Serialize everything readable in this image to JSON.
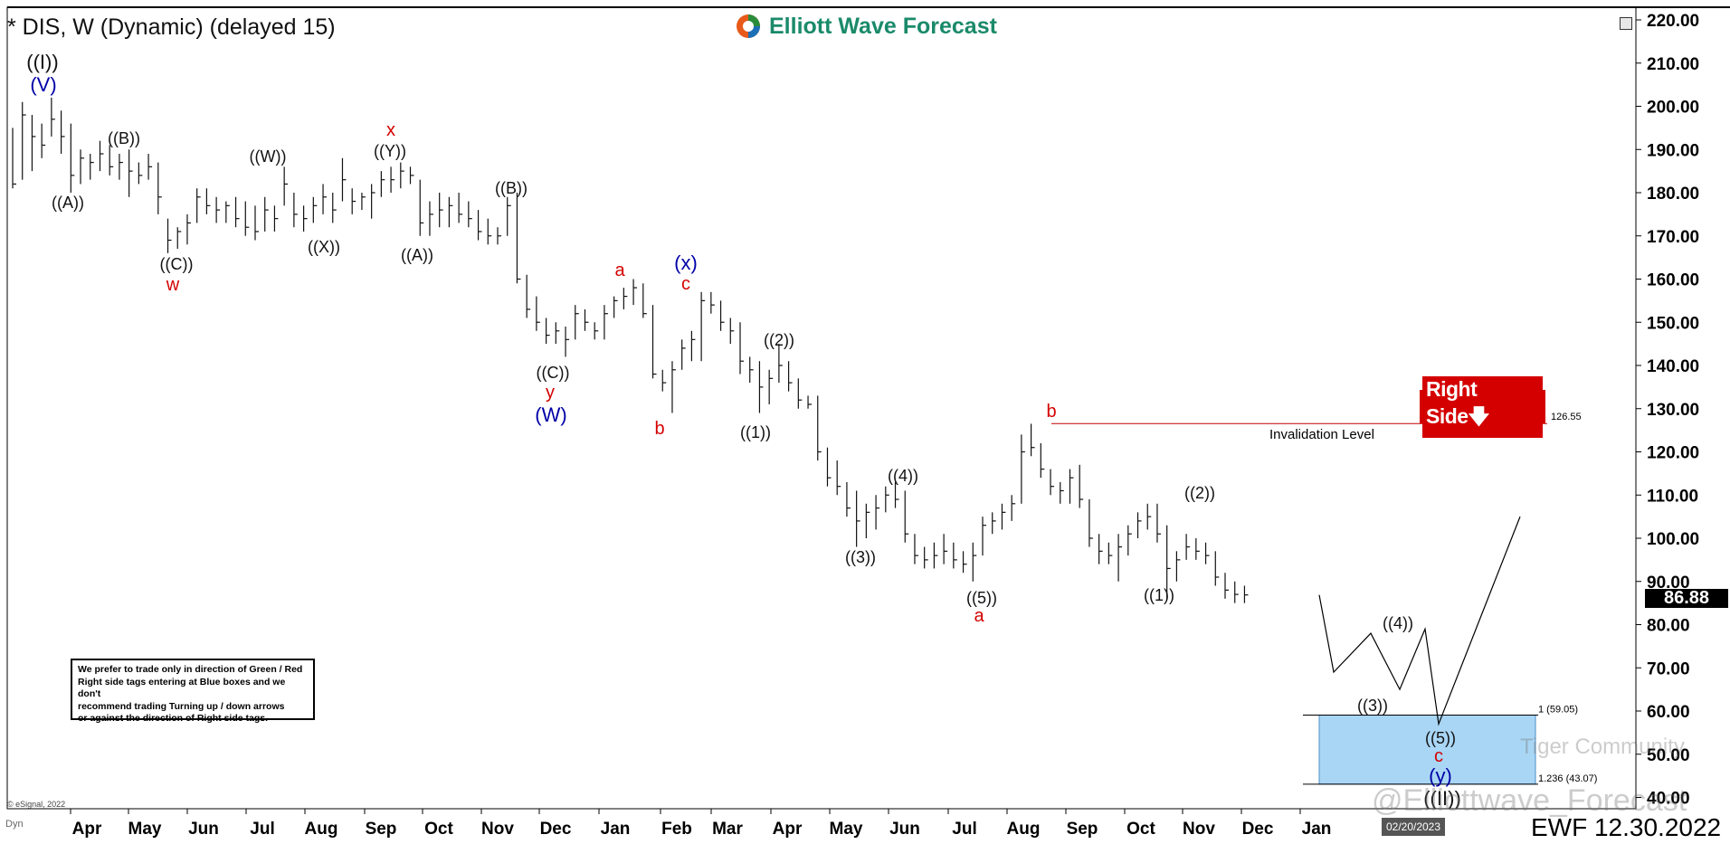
{
  "header": {
    "title": "* DIS, W (Dynamic) (delayed 15)",
    "logo_text": "Elliott Wave Forecast"
  },
  "note": {
    "lines": [
      "We prefer to trade only in direction of Green / Red",
      "Right side tags entering at Blue boxes and we don't",
      "recommend trading Turning up / down arrows",
      "or against the direction of Right side tags."
    ]
  },
  "badges": {
    "right_side": "Right Side",
    "last_price": "86.88",
    "cursor_date": "02/20/2023"
  },
  "footer": {
    "ewf_date": "EWF 12.30.2022",
    "esignal": "© eSignal, 2022",
    "dyn": "Dyn"
  },
  "watermarks": {
    "community": "Tiger Community",
    "handle": "@Elliottwave_Forecast"
  },
  "colors": {
    "label_black": "#111111",
    "label_red": "#d40000",
    "label_blue": "#0000a8",
    "invalidation_line": "#c00000",
    "blue_box": "#a9d6f5",
    "bars": "#111111"
  },
  "chart_data": {
    "type": "ohlc",
    "timeframe": "weekly",
    "yaxis": {
      "ticks": [
        "220.00",
        "210.00",
        "200.00",
        "190.00",
        "180.00",
        "170.00",
        "160.00",
        "150.00",
        "140.00",
        "130.00",
        "120.00",
        "110.00",
        "100.00",
        "90.00",
        "80.00",
        "70.00",
        "60.00",
        "50.00",
        "40.00"
      ],
      "ylim": [
        40,
        220
      ],
      "position": "right"
    },
    "xaxis": {
      "ticks": [
        "Apr",
        "May",
        "Jun",
        "Jul",
        "Aug",
        "Sep",
        "Oct",
        "Nov",
        "Dec",
        "Jan",
        "Feb",
        "Mar",
        "Apr",
        "May",
        "Jun",
        "Jul",
        "Aug",
        "Sep",
        "Oct",
        "Nov",
        "Dec",
        "Jan"
      ]
    },
    "bars": [
      {
        "h": 195.0,
        "l": 181.0,
        "c": 182.0
      },
      {
        "h": 201.0,
        "l": 183.0,
        "c": 198.0
      },
      {
        "h": 198.0,
        "l": 185.0,
        "c": 193.0
      },
      {
        "h": 196.0,
        "l": 188.0,
        "c": 191.0
      },
      {
        "h": 202.0,
        "l": 193.0,
        "c": 197.0
      },
      {
        "h": 199.0,
        "l": 189.0,
        "c": 193.0
      },
      {
        "h": 196.0,
        "l": 180.0,
        "c": 184.0
      },
      {
        "h": 190.0,
        "l": 182.0,
        "c": 188.0
      },
      {
        "h": 189.0,
        "l": 183.0,
        "c": 187.0
      },
      {
        "h": 192.0,
        "l": 185.0,
        "c": 189.0
      },
      {
        "h": 191.0,
        "l": 184.0,
        "c": 186.0
      },
      {
        "h": 189.0,
        "l": 183.0,
        "c": 187.0
      },
      {
        "h": 190.0,
        "l": 179.0,
        "c": 185.0
      },
      {
        "h": 187.0,
        "l": 182.0,
        "c": 184.0
      },
      {
        "h": 189.0,
        "l": 183.0,
        "c": 186.0
      },
      {
        "h": 187.0,
        "l": 175.0,
        "c": 179.0
      },
      {
        "h": 174.0,
        "l": 166.0,
        "c": 169.0
      },
      {
        "h": 172.0,
        "l": 167.0,
        "c": 171.0
      },
      {
        "h": 175.0,
        "l": 168.0,
        "c": 173.0
      },
      {
        "h": 181.0,
        "l": 173.0,
        "c": 179.0
      },
      {
        "h": 181.0,
        "l": 175.0,
        "c": 177.0
      },
      {
        "h": 179.0,
        "l": 173.0,
        "c": 176.0
      },
      {
        "h": 178.0,
        "l": 173.0,
        "c": 177.0
      },
      {
        "h": 179.0,
        "l": 172.0,
        "c": 174.0
      },
      {
        "h": 178.0,
        "l": 170.0,
        "c": 172.0
      },
      {
        "h": 177.0,
        "l": 169.0,
        "c": 171.0
      },
      {
        "h": 179.0,
        "l": 171.0,
        "c": 176.0
      },
      {
        "h": 177.0,
        "l": 171.0,
        "c": 174.0
      },
      {
        "h": 186.0,
        "l": 177.0,
        "c": 182.0
      },
      {
        "h": 180.0,
        "l": 172.0,
        "c": 175.0
      },
      {
        "h": 177.0,
        "l": 171.0,
        "c": 174.0
      },
      {
        "h": 179.0,
        "l": 173.0,
        "c": 177.0
      },
      {
        "h": 182.0,
        "l": 175.0,
        "c": 179.0
      },
      {
        "h": 180.0,
        "l": 173.0,
        "c": 176.0
      },
      {
        "h": 188.0,
        "l": 178.0,
        "c": 183.0
      },
      {
        "h": 181.0,
        "l": 175.0,
        "c": 178.0
      },
      {
        "h": 180.0,
        "l": 176.0,
        "c": 179.0
      },
      {
        "h": 182.0,
        "l": 174.0,
        "c": 180.0
      },
      {
        "h": 185.0,
        "l": 179.0,
        "c": 183.0
      },
      {
        "h": 186.0,
        "l": 180.0,
        "c": 183.0
      },
      {
        "h": 187.0,
        "l": 181.0,
        "c": 185.0
      },
      {
        "h": 186.0,
        "l": 182.0,
        "c": 184.0
      },
      {
        "h": 183.0,
        "l": 170.0,
        "c": 173.0
      },
      {
        "h": 178.0,
        "l": 170.0,
        "c": 175.0
      },
      {
        "h": 180.0,
        "l": 172.0,
        "c": 176.0
      },
      {
        "h": 179.0,
        "l": 172.0,
        "c": 177.0
      },
      {
        "h": 180.0,
        "l": 173.0,
        "c": 175.0
      },
      {
        "h": 178.0,
        "l": 172.0,
        "c": 174.0
      },
      {
        "h": 176.0,
        "l": 169.0,
        "c": 171.0
      },
      {
        "h": 174.0,
        "l": 168.0,
        "c": 170.0
      },
      {
        "h": 172.0,
        "l": 168.0,
        "c": 170.0
      },
      {
        "h": 179.0,
        "l": 170.0,
        "c": 177.0
      },
      {
        "h": 180.0,
        "l": 159.0,
        "c": 160.0
      },
      {
        "h": 161.0,
        "l": 151.0,
        "c": 153.0
      },
      {
        "h": 156.0,
        "l": 148.0,
        "c": 150.0
      },
      {
        "h": 151.0,
        "l": 145.0,
        "c": 147.0
      },
      {
        "h": 150.0,
        "l": 145.0,
        "c": 148.0
      },
      {
        "h": 149.0,
        "l": 142.0,
        "c": 146.0
      },
      {
        "h": 154.0,
        "l": 146.0,
        "c": 152.0
      },
      {
        "h": 153.0,
        "l": 148.0,
        "c": 150.0
      },
      {
        "h": 150.0,
        "l": 146.0,
        "c": 148.0
      },
      {
        "h": 154.0,
        "l": 146.0,
        "c": 152.0
      },
      {
        "h": 156.0,
        "l": 151.0,
        "c": 155.0
      },
      {
        "h": 158.0,
        "l": 153.0,
        "c": 156.0
      },
      {
        "h": 160.0,
        "l": 154.0,
        "c": 158.0
      },
      {
        "h": 159.0,
        "l": 151.0,
        "c": 152.0
      },
      {
        "h": 154.0,
        "l": 137.0,
        "c": 138.0
      },
      {
        "h": 139.0,
        "l": 134.0,
        "c": 136.0
      },
      {
        "h": 141.0,
        "l": 129.0,
        "c": 139.0
      },
      {
        "h": 146.0,
        "l": 139.0,
        "c": 144.0
      },
      {
        "h": 148.0,
        "l": 141.0,
        "c": 146.0
      },
      {
        "h": 157.0,
        "l": 141.0,
        "c": 155.0
      },
      {
        "h": 157.0,
        "l": 152.0,
        "c": 154.0
      },
      {
        "h": 155.0,
        "l": 148.0,
        "c": 150.0
      },
      {
        "h": 151.0,
        "l": 145.0,
        "c": 148.0
      },
      {
        "h": 150.0,
        "l": 138.0,
        "c": 141.0
      },
      {
        "h": 142.0,
        "l": 136.0,
        "c": 139.0
      },
      {
        "h": 141.0,
        "l": 129.0,
        "c": 135.0
      },
      {
        "h": 139.0,
        "l": 131.0,
        "c": 137.0
      },
      {
        "h": 145.0,
        "l": 136.0,
        "c": 140.0
      },
      {
        "h": 141.0,
        "l": 134.0,
        "c": 136.0
      },
      {
        "h": 137.0,
        "l": 130.0,
        "c": 132.0
      },
      {
        "h": 133.0,
        "l": 130.0,
        "c": 131.0
      },
      {
        "h": 133.0,
        "l": 118.0,
        "c": 120.0
      },
      {
        "h": 121.0,
        "l": 112.0,
        "c": 114.0
      },
      {
        "h": 118.0,
        "l": 110.0,
        "c": 112.0
      },
      {
        "h": 113.0,
        "l": 105.0,
        "c": 107.0
      },
      {
        "h": 111.0,
        "l": 98.0,
        "c": 104.0
      },
      {
        "h": 108.0,
        "l": 100.0,
        "c": 106.0
      },
      {
        "h": 110.0,
        "l": 102.0,
        "c": 107.0
      },
      {
        "h": 112.0,
        "l": 106.0,
        "c": 110.0
      },
      {
        "h": 113.0,
        "l": 107.0,
        "c": 109.0
      },
      {
        "h": 111.0,
        "l": 99.0,
        "c": 101.0
      },
      {
        "h": 101.0,
        "l": 94.0,
        "c": 96.0
      },
      {
        "h": 98.0,
        "l": 93.0,
        "c": 95.0
      },
      {
        "h": 99.0,
        "l": 93.0,
        "c": 96.0
      },
      {
        "h": 101.0,
        "l": 94.0,
        "c": 97.0
      },
      {
        "h": 99.0,
        "l": 93.0,
        "c": 95.0
      },
      {
        "h": 97.0,
        "l": 92.0,
        "c": 94.0
      },
      {
        "h": 99.0,
        "l": 90.0,
        "c": 96.0
      },
      {
        "h": 105.0,
        "l": 96.0,
        "c": 103.0
      },
      {
        "h": 106.0,
        "l": 101.0,
        "c": 104.0
      },
      {
        "h": 108.0,
        "l": 102.0,
        "c": 106.0
      },
      {
        "h": 110.0,
        "l": 104.0,
        "c": 108.0
      },
      {
        "h": 124.0,
        "l": 108.0,
        "c": 120.0
      },
      {
        "h": 126.5,
        "l": 119.0,
        "c": 121.0
      },
      {
        "h": 122.0,
        "l": 114.0,
        "c": 116.0
      },
      {
        "h": 116.0,
        "l": 110.0,
        "c": 112.0
      },
      {
        "h": 113.0,
        "l": 108.0,
        "c": 111.0
      },
      {
        "h": 116.0,
        "l": 108.0,
        "c": 114.0
      },
      {
        "h": 117.0,
        "l": 107.0,
        "c": 109.0
      },
      {
        "h": 109.0,
        "l": 98.0,
        "c": 100.0
      },
      {
        "h": 101.0,
        "l": 94.0,
        "c": 97.0
      },
      {
        "h": 99.0,
        "l": 94.0,
        "c": 96.0
      },
      {
        "h": 101.0,
        "l": 90.0,
        "c": 98.0
      },
      {
        "h": 103.0,
        "l": 96.0,
        "c": 101.0
      },
      {
        "h": 106.0,
        "l": 100.0,
        "c": 104.0
      },
      {
        "h": 108.0,
        "l": 102.0,
        "c": 105.0
      },
      {
        "h": 108.0,
        "l": 99.0,
        "c": 101.0
      },
      {
        "h": 103.0,
        "l": 86.0,
        "c": 93.0
      },
      {
        "h": 97.0,
        "l": 90.0,
        "c": 95.0
      },
      {
        "h": 101.0,
        "l": 95.0,
        "c": 98.0
      },
      {
        "h": 100.0,
        "l": 95.0,
        "c": 97.0
      },
      {
        "h": 99.0,
        "l": 94.0,
        "c": 96.0
      },
      {
        "h": 97.0,
        "l": 89.0,
        "c": 91.0
      },
      {
        "h": 92.0,
        "l": 86.0,
        "c": 88.0
      },
      {
        "h": 90.0,
        "l": 85.0,
        "c": 87.0
      },
      {
        "h": 89.0,
        "l": 85.0,
        "c": 86.88
      }
    ],
    "projection": {
      "points": [
        [
          86.88
        ],
        [
          69.0
        ],
        [
          78.0
        ],
        [
          65.0
        ],
        [
          79.0
        ],
        [
          57.0
        ],
        [
          105.0
        ]
      ]
    },
    "wave_labels": [
      {
        "text": "((I))",
        "color": "black"
      },
      {
        "text": "(V)",
        "color": "blue"
      },
      {
        "text": "((A))",
        "color": "black"
      },
      {
        "text": "((B))",
        "color": "black"
      },
      {
        "text": "((C))",
        "color": "black"
      },
      {
        "text": "w",
        "color": "red"
      },
      {
        "text": "((W))",
        "color": "black"
      },
      {
        "text": "((X))",
        "color": "black"
      },
      {
        "text": "x",
        "color": "red"
      },
      {
        "text": "((Y))",
        "color": "black"
      },
      {
        "text": "((A))",
        "color": "black"
      },
      {
        "text": "((B))",
        "color": "black"
      },
      {
        "text": "((C))",
        "color": "black"
      },
      {
        "text": "y",
        "color": "red"
      },
      {
        "text": "(W)",
        "color": "blue"
      },
      {
        "text": "a",
        "color": "red"
      },
      {
        "text": "b",
        "color": "red"
      },
      {
        "text": "(x)",
        "color": "blue"
      },
      {
        "text": "c",
        "color": "red"
      },
      {
        "text": "((2))",
        "color": "black"
      },
      {
        "text": "((1))",
        "color": "black"
      },
      {
        "text": "((4))",
        "color": "black"
      },
      {
        "text": "((3))",
        "color": "black"
      },
      {
        "text": "((5))",
        "color": "black"
      },
      {
        "text": "a",
        "color": "red"
      },
      {
        "text": "b",
        "color": "red"
      },
      {
        "text": "((2))",
        "color": "black"
      },
      {
        "text": "((1))",
        "color": "black"
      },
      {
        "text": "((4))",
        "color": "black"
      },
      {
        "text": "((3))",
        "color": "black"
      },
      {
        "text": "((5))",
        "color": "black"
      },
      {
        "text": "c",
        "color": "red"
      },
      {
        "text": "(y)",
        "color": "blue"
      },
      {
        "text": "((II))",
        "color": "black"
      }
    ],
    "invalidation": {
      "value": 126.55,
      "label": "Invalidation Level",
      "price_label": "126.55"
    },
    "target_box": {
      "top": 59.05,
      "bottom": 43.07,
      "top_label": "1 (59.05)",
      "bottom_label": "1.236 (43.07)"
    }
  }
}
